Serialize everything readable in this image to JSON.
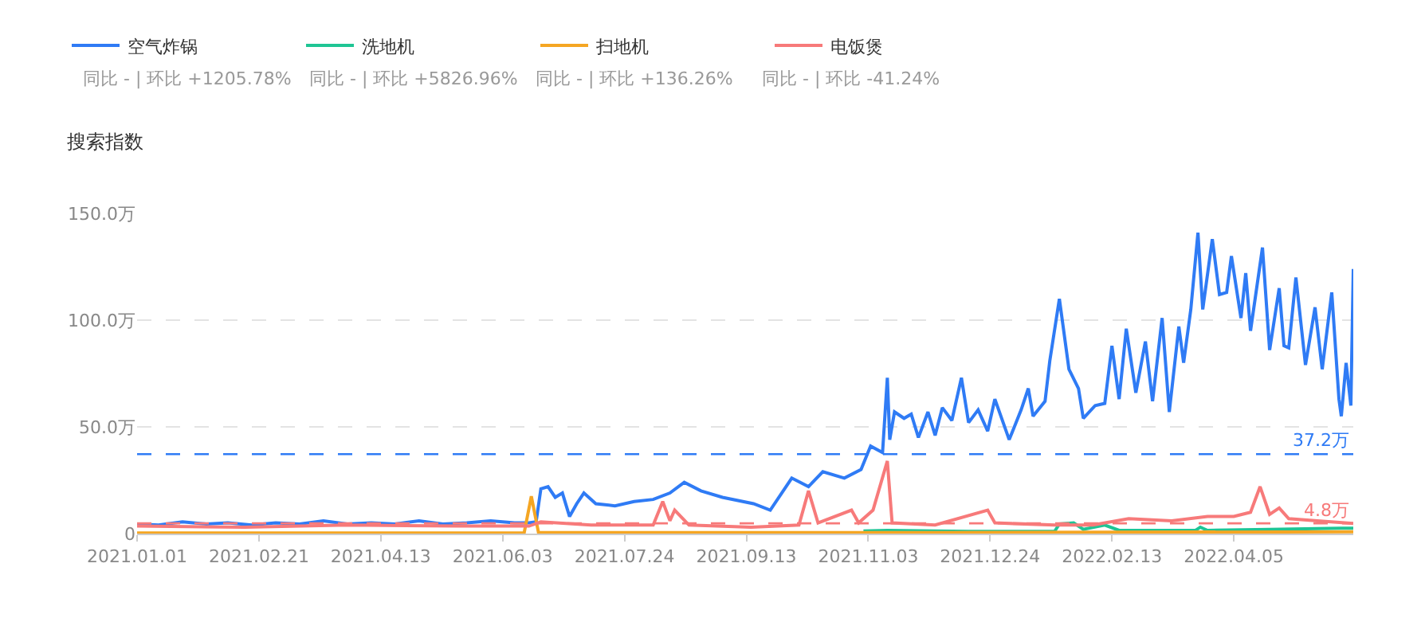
{
  "chart_data": {
    "type": "line",
    "ylabel": "搜索指数",
    "legend": "top left",
    "grid": "y",
    "marker": "none",
    "line_style": "solid",
    "ylim": [
      0,
      150
    ],
    "yticks": [
      {
        "value": 0,
        "label": "0"
      },
      {
        "value": 50,
        "label": "50.0万"
      },
      {
        "value": 100,
        "label": "100.0万"
      },
      {
        "value": 150,
        "label": "150.0万"
      }
    ],
    "xlim": [
      "2021-01-01",
      "2022-05-25"
    ],
    "xticks": [
      {
        "value": "2021-01-01",
        "label": "2021.01.01"
      },
      {
        "value": "2021-02-21",
        "label": "2021.02.21"
      },
      {
        "value": "2021-04-13",
        "label": "2021.04.13"
      },
      {
        "value": "2021-06-03",
        "label": "2021.06.03"
      },
      {
        "value": "2021-07-24",
        "label": "2021.07.24"
      },
      {
        "value": "2021-09-13",
        "label": "2021.09.13"
      },
      {
        "value": "2021-11-03",
        "label": "2021.11.03"
      },
      {
        "value": "2021-12-24",
        "label": "2021.12.24"
      },
      {
        "value": "2022-02-13",
        "label": "2022.02.13"
      },
      {
        "value": "2022-04-05",
        "label": "2022.04.05"
      }
    ],
    "annotations": [
      "同比 - | 环比 +1205.78%",
      "同比 - | 环比 +5826.96%",
      "同比 - | 环比 +136.26%",
      "同比 - | 环比 -41.24%"
    ],
    "ref_lines": [
      {
        "axis": "y",
        "value": 37.2,
        "label": "37.2万",
        "color": "#2f7bf5",
        "line_style": "dashed"
      },
      {
        "axis": "y",
        "value": 4.8,
        "label": "4.8万",
        "color": "#f77a7a",
        "line_style": "dashed"
      }
    ],
    "series": [
      {
        "name": "空气炸锅",
        "color": "#2f7bf5",
        "x": [
          "2021-01-01",
          "2021-01-10",
          "2021-01-20",
          "2021-01-30",
          "2021-02-08",
          "2021-02-18",
          "2021-02-28",
          "2021-03-10",
          "2021-03-20",
          "2021-03-30",
          "2021-04-09",
          "2021-04-19",
          "2021-04-29",
          "2021-05-09",
          "2021-05-19",
          "2021-05-29",
          "2021-06-08",
          "2021-06-14",
          "2021-06-17",
          "2021-06-19",
          "2021-06-22",
          "2021-06-25",
          "2021-06-28",
          "2021-07-01",
          "2021-07-04",
          "2021-07-07",
          "2021-07-12",
          "2021-07-20",
          "2021-07-28",
          "2021-08-05",
          "2021-08-12",
          "2021-08-18",
          "2021-08-25",
          "2021-09-03",
          "2021-09-16",
          "2021-09-23",
          "2021-10-02",
          "2021-10-09",
          "2021-10-15",
          "2021-10-24",
          "2021-10-31",
          "2021-11-04",
          "2021-11-09",
          "2021-11-11",
          "2021-11-12",
          "2021-11-14",
          "2021-11-18",
          "2021-11-21",
          "2021-11-24",
          "2021-11-28",
          "2021-12-01",
          "2021-12-04",
          "2021-12-08",
          "2021-12-12",
          "2021-12-15",
          "2021-12-19",
          "2021-12-23",
          "2021-12-26",
          "2022-01-01",
          "2022-01-06",
          "2022-01-09",
          "2022-01-11",
          "2022-01-16",
          "2022-01-18",
          "2022-01-22",
          "2022-01-26",
          "2022-01-30",
          "2022-02-01",
          "2022-02-06",
          "2022-02-10",
          "2022-02-13",
          "2022-02-16",
          "2022-02-19",
          "2022-02-23",
          "2022-02-27",
          "2022-03-02",
          "2022-03-06",
          "2022-03-09",
          "2022-03-13",
          "2022-03-15",
          "2022-03-18",
          "2022-03-21",
          "2022-03-23",
          "2022-03-27",
          "2022-03-30",
          "2022-04-02",
          "2022-04-04",
          "2022-04-08",
          "2022-04-10",
          "2022-04-12",
          "2022-04-17",
          "2022-04-20",
          "2022-04-24",
          "2022-04-26",
          "2022-04-28",
          "2022-05-01",
          "2022-05-05",
          "2022-05-09",
          "2022-05-12",
          "2022-05-16",
          "2022-05-19",
          "2022-05-20",
          "2022-05-22",
          "2022-05-24",
          "2022-05-25"
        ],
        "values": [
          4.5,
          4,
          5.5,
          4.5,
          5,
          4,
          5,
          4.5,
          6,
          4.5,
          5,
          4.5,
          6,
          4.5,
          5,
          6,
          5,
          5,
          5.5,
          21,
          22,
          17,
          19,
          8,
          14,
          19,
          14,
          13,
          15,
          16,
          19,
          24,
          20,
          17,
          14,
          11,
          26,
          22,
          29,
          26,
          30,
          41,
          38,
          73,
          44,
          57,
          54,
          56,
          45,
          57,
          46,
          59,
          53,
          73,
          52,
          58,
          48,
          63,
          44,
          58,
          68,
          55,
          62,
          81,
          110,
          77,
          68,
          54,
          60,
          61,
          88,
          63,
          96,
          66,
          90,
          62,
          101,
          57,
          97,
          80,
          105,
          141,
          105,
          138,
          112,
          113,
          130,
          101,
          122,
          95,
          134,
          86,
          115,
          88,
          87,
          120,
          79,
          106,
          77,
          113,
          63,
          55,
          80,
          60,
          124
        ]
      },
      {
        "name": "洗地机",
        "color": "#1fc594",
        "x": [
          "2021-11-01",
          "2021-11-11",
          "2021-12-15",
          "2022-01-20",
          "2022-01-22",
          "2022-01-28",
          "2022-02-01",
          "2022-02-10",
          "2022-02-16",
          "2022-03-20",
          "2022-03-22",
          "2022-03-25",
          "2022-04-20",
          "2022-05-20",
          "2022-05-25"
        ],
        "values": [
          1.2,
          1.5,
          1,
          1,
          4.5,
          5,
          2,
          4,
          1.5,
          1.5,
          3,
          1.5,
          2,
          2.5,
          2.5
        ]
      },
      {
        "name": "扫地机",
        "color": "#f5a623",
        "x": [
          "2021-01-01",
          "2021-06-12",
          "2021-06-15",
          "2021-06-18",
          "2021-12-01",
          "2022-05-25"
        ],
        "values": [
          0.3,
          0.3,
          17.5,
          0.5,
          0.5,
          0.8
        ]
      },
      {
        "name": "电饭煲",
        "color": "#f77a7a",
        "x": [
          "2021-01-01",
          "2021-02-15",
          "2021-03-30",
          "2021-05-15",
          "2021-06-14",
          "2021-06-19",
          "2021-07-10",
          "2021-08-05",
          "2021-08-09",
          "2021-08-12",
          "2021-08-14",
          "2021-08-20",
          "2021-09-15",
          "2021-10-05",
          "2021-10-09",
          "2021-10-13",
          "2021-10-27",
          "2021-10-30",
          "2021-11-05",
          "2021-11-11",
          "2021-11-13",
          "2021-12-01",
          "2021-12-23",
          "2021-12-26",
          "2022-01-20",
          "2022-02-05",
          "2022-02-20",
          "2022-03-10",
          "2022-03-25",
          "2022-04-05",
          "2022-04-12",
          "2022-04-16",
          "2022-04-20",
          "2022-04-24",
          "2022-04-28",
          "2022-05-10",
          "2022-05-25"
        ],
        "values": [
          3.5,
          3,
          4,
          3.5,
          3.5,
          5.5,
          4,
          4,
          15,
          6,
          11,
          4,
          3,
          4,
          20,
          5,
          11,
          5,
          11,
          34,
          5,
          4,
          11,
          5,
          4,
          4,
          7,
          6,
          8,
          8,
          10,
          22,
          9,
          12,
          7,
          6,
          4.8
        ]
      }
    ]
  }
}
